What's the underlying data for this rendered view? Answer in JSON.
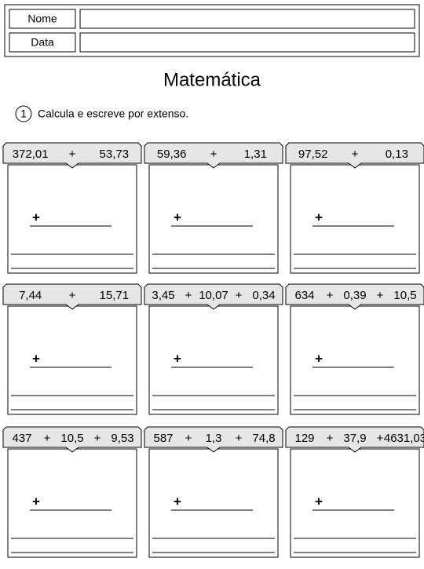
{
  "header": {
    "fields": [
      "Nome",
      "Data"
    ]
  },
  "title": "Matemática",
  "instruction": {
    "number": "1",
    "text": "Calcula e escreve por extenso."
  },
  "work_operator": "+",
  "exercises": [
    {
      "terms": [
        "372,01",
        "+",
        "53,73"
      ]
    },
    {
      "terms": [
        "59,36",
        "+",
        "1,31"
      ]
    },
    {
      "terms": [
        "97,52",
        "+",
        "0,13"
      ]
    },
    {
      "terms": [
        "7,44",
        "+",
        "15,71"
      ]
    },
    {
      "terms": [
        "3,45",
        "+",
        "10,07",
        "+",
        "0,34"
      ]
    },
    {
      "terms": [
        "634",
        "+",
        "0,39",
        "+",
        "10,5"
      ]
    },
    {
      "terms": [
        "437",
        "+",
        "10,5",
        "+",
        "9,53"
      ]
    },
    {
      "terms": [
        "587",
        "+",
        "1,3",
        "+",
        "74,8"
      ]
    },
    {
      "terms": [
        "129",
        "+",
        "37,9",
        "+",
        "4631,03"
      ]
    }
  ]
}
